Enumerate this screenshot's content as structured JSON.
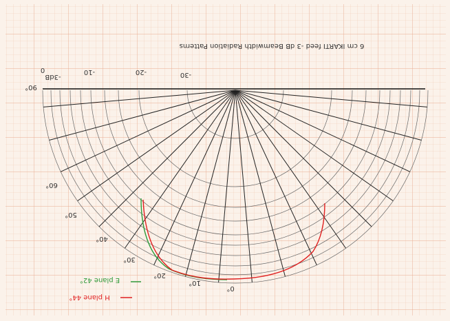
{
  "title": "6 cm IKARTI feed -3 dB Beamwidth Radiation Patterns",
  "radial_labels": [
    "0",
    "-3dB",
    "-10",
    "-20",
    "-30"
  ],
  "angle_labels": [
    "90°",
    "60°",
    "50°",
    "40°",
    "30°",
    "20°",
    "10°",
    "0°"
  ],
  "legend": [
    {
      "name": "E plane 42°",
      "color": "#2e9a3a"
    },
    {
      "name": "H plane 44°",
      "color": "#e02020"
    }
  ]
}
